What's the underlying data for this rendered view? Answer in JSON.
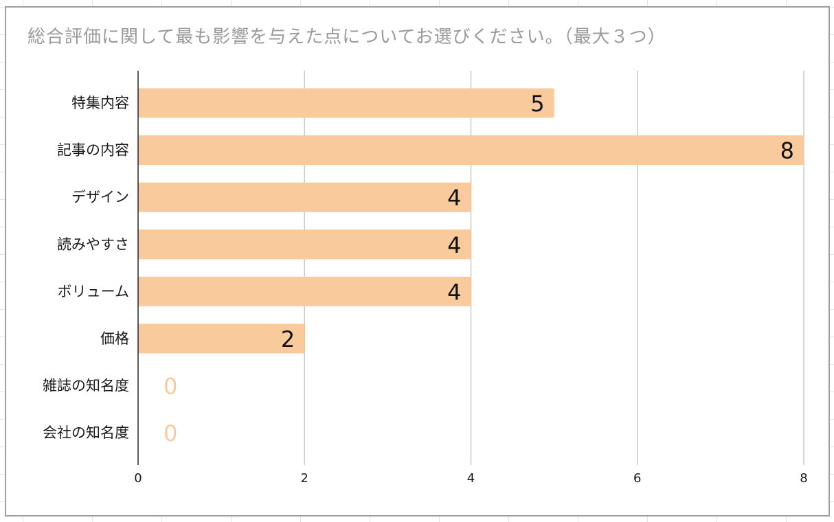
{
  "chart_data": {
    "type": "bar",
    "orientation": "horizontal",
    "title": "総合評価に関して最も影響を与えた点についてお選びください。（最大３つ）",
    "categories": [
      "特集内容",
      "記事の内容",
      "デザイン",
      "読みやすさ",
      "ボリューム",
      "価格",
      "雑誌の知名度",
      "会社の知名度"
    ],
    "values": [
      5,
      8,
      4,
      4,
      4,
      2,
      0,
      0
    ],
    "xlim": [
      0,
      8
    ],
    "xticks": [
      0,
      2,
      4,
      6,
      8
    ],
    "grid": "vertical",
    "legend": "none",
    "bar_color": "#f9cb9c",
    "label_color": "#111111",
    "zero_label_color": "#f9cb9c"
  }
}
